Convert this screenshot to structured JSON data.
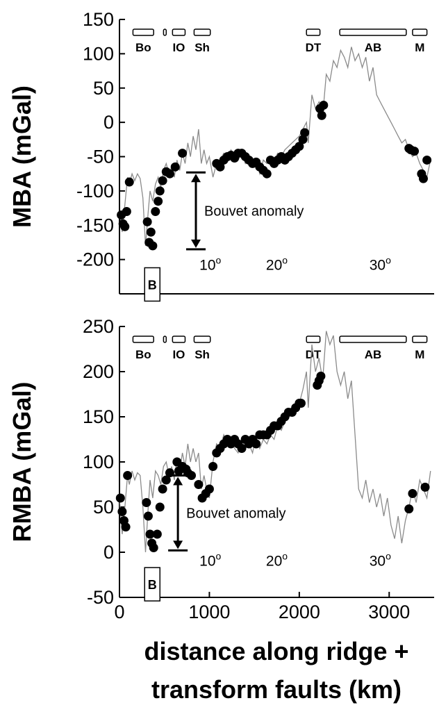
{
  "xlabel_line1": "distance along ridge +",
  "xlabel_line2": "transform faults (km)",
  "chart_data": [
    {
      "type": "line",
      "ylabel": "MBA (mGal)",
      "xlim": [
        0,
        3500
      ],
      "ylim": [
        -250,
        150
      ],
      "x_ticks": [],
      "y_ticks": [
        150,
        100,
        50,
        0,
        -50,
        -100,
        -150,
        -200
      ],
      "segments": [
        {
          "label": "Bo",
          "x_start": 150,
          "x_end": 380
        },
        {
          "label": "",
          "x_start": 490,
          "x_end": 520
        },
        {
          "label": "IO",
          "x_start": 590,
          "x_end": 730
        },
        {
          "label": "Sh",
          "x_start": 830,
          "x_end": 1010
        },
        {
          "label": "DT",
          "x_start": 2080,
          "x_end": 2230
        },
        {
          "label": "AB",
          "x_start": 2450,
          "x_end": 3190
        },
        {
          "label": "M",
          "x_start": 3260,
          "x_end": 3420
        }
      ],
      "latitude_marks": [
        {
          "label": "10°",
          "x": 1010
        },
        {
          "label": "20°",
          "x": 1750
        },
        {
          "label": "30°",
          "x": 2900
        }
      ],
      "box_label": {
        "label": "B",
        "x_start": 280,
        "x_end": 450
      },
      "anomaly": {
        "label": "Bouvet anomaly",
        "x": 850,
        "y_top": -73,
        "y_bottom": -185
      },
      "series": [
        {
          "line_x": [
            0,
            30,
            60,
            90,
            110,
            140,
            170,
            200,
            230,
            260,
            290,
            320,
            340,
            370,
            400,
            430,
            460,
            490,
            520,
            550,
            580,
            610,
            640,
            670,
            700,
            730,
            760,
            790,
            820,
            850,
            880,
            910,
            940,
            970,
            1000,
            1040,
            1080,
            1120,
            1160,
            1200,
            1240,
            1280,
            1320,
            1360,
            1400,
            1440,
            1480,
            1520,
            1560,
            1600,
            1640,
            1680,
            1720,
            1760,
            1800,
            1840,
            1880,
            1920,
            1960,
            2000,
            2040,
            2080,
            2100,
            2140,
            2180,
            2220,
            2260,
            2300,
            2340,
            2380,
            2420,
            2460,
            2500,
            2540,
            2580,
            2620,
            2660,
            2700,
            2740,
            2780,
            2820,
            2860,
            2900,
            2940,
            2980,
            3020,
            3060,
            3100,
            3140,
            3180,
            3220,
            3260,
            3300,
            3340,
            3380,
            3420,
            3460
          ],
          "line_y": [
            -130,
            -160,
            -120,
            -80,
            -90,
            -75,
            -85,
            -75,
            -82,
            -110,
            -180,
            -130,
            -100,
            -115,
            -90,
            -80,
            -95,
            -70,
            -60,
            -75,
            -65,
            -80,
            -55,
            -70,
            -45,
            -60,
            -30,
            -50,
            -20,
            -40,
            -10,
            -60,
            -40,
            -60,
            -50,
            -80,
            -60,
            -55,
            -45,
            -50,
            -40,
            -48,
            -55,
            -45,
            -60,
            -50,
            -65,
            -55,
            -75,
            -55,
            -60,
            -50,
            -55,
            -45,
            -50,
            -40,
            -35,
            -30,
            -25,
            -20,
            -10,
            0,
            -30,
            40,
            20,
            30,
            10,
            70,
            60,
            90,
            80,
            105,
            95,
            80,
            110,
            90,
            100,
            80,
            95,
            60,
            80,
            40,
            30,
            20,
            10,
            0,
            -10,
            -20,
            -30,
            -25,
            -40,
            -50,
            -45,
            -60,
            -70,
            -80,
            -55
          ],
          "dots_x": [
            20,
            40,
            60,
            80,
            110,
            310,
            330,
            350,
            370,
            400,
            430,
            450,
            480,
            520,
            560,
            620,
            700,
            1080,
            1120,
            1160,
            1200,
            1240,
            1280,
            1320,
            1360,
            1400,
            1440,
            1480,
            1520,
            1560,
            1600,
            1640,
            1680,
            1720,
            1760,
            1800,
            1840,
            1880,
            1920,
            1960,
            2000,
            2040,
            2060,
            2230,
            2250,
            2270,
            3220,
            3240,
            3280,
            3360,
            3380,
            3420
          ],
          "dots_y": [
            -135,
            -148,
            -152,
            -130,
            -87,
            -145,
            -175,
            -160,
            -180,
            -130,
            -115,
            -100,
            -85,
            -72,
            -75,
            -65,
            -45,
            -60,
            -65,
            -55,
            -50,
            -48,
            -52,
            -45,
            -45,
            -50,
            -55,
            -60,
            -58,
            -65,
            -70,
            -75,
            -55,
            -60,
            -55,
            -50,
            -55,
            -50,
            -45,
            -40,
            -35,
            -25,
            -15,
            20,
            10,
            25,
            -38,
            -40,
            -42,
            -75,
            -82,
            -55
          ]
        }
      ]
    },
    {
      "type": "line",
      "ylabel": "RMBA (mGal)",
      "xlim": [
        0,
        3500
      ],
      "ylim": [
        -50,
        250
      ],
      "x_ticks": [
        0,
        1000,
        2000,
        3000
      ],
      "y_ticks": [
        250,
        200,
        150,
        100,
        50,
        0,
        -50
      ],
      "segments": [
        {
          "label": "Bo",
          "x_start": 150,
          "x_end": 380
        },
        {
          "label": "",
          "x_start": 490,
          "x_end": 520
        },
        {
          "label": "IO",
          "x_start": 590,
          "x_end": 730
        },
        {
          "label": "Sh",
          "x_start": 830,
          "x_end": 1010
        },
        {
          "label": "DT",
          "x_start": 2080,
          "x_end": 2230
        },
        {
          "label": "AB",
          "x_start": 2450,
          "x_end": 3190
        },
        {
          "label": "M",
          "x_start": 3260,
          "x_end": 3420
        }
      ],
      "latitude_marks": [
        {
          "label": "10°",
          "x": 1010
        },
        {
          "label": "20°",
          "x": 1750
        },
        {
          "label": "30°",
          "x": 2900
        }
      ],
      "box_label": {
        "label": "B",
        "x_start": 280,
        "x_end": 450
      },
      "anomaly": {
        "label": "Bouvet anomaly",
        "x": 650,
        "y_top": 85,
        "y_bottom": 2
      },
      "series": [
        {
          "line_x": [
            0,
            30,
            60,
            90,
            110,
            140,
            170,
            200,
            230,
            260,
            290,
            320,
            340,
            370,
            400,
            430,
            460,
            490,
            520,
            550,
            580,
            610,
            640,
            670,
            700,
            730,
            760,
            790,
            820,
            850,
            880,
            910,
            940,
            970,
            1000,
            1040,
            1080,
            1120,
            1160,
            1200,
            1240,
            1280,
            1320,
            1360,
            1400,
            1440,
            1480,
            1520,
            1560,
            1600,
            1640,
            1680,
            1720,
            1760,
            1800,
            1840,
            1880,
            1920,
            1960,
            2000,
            2040,
            2080,
            2100,
            2140,
            2180,
            2220,
            2260,
            2300,
            2340,
            2380,
            2420,
            2460,
            2500,
            2540,
            2580,
            2620,
            2660,
            2700,
            2740,
            2780,
            2820,
            2860,
            2900,
            2940,
            2980,
            3020,
            3060,
            3100,
            3140,
            3180,
            3220,
            3260,
            3300,
            3340,
            3380,
            3420,
            3460
          ],
          "line_y": [
            60,
            20,
            50,
            85,
            75,
            90,
            80,
            88,
            85,
            50,
            0,
            50,
            80,
            60,
            90,
            85,
            75,
            95,
            100,
            85,
            95,
            80,
            105,
            90,
            110,
            95,
            120,
            100,
            115,
            100,
            110,
            70,
            85,
            70,
            60,
            100,
            120,
            115,
            130,
            120,
            125,
            115,
            110,
            125,
            115,
            120,
            110,
            130,
            115,
            125,
            120,
            130,
            125,
            140,
            135,
            145,
            150,
            155,
            160,
            165,
            180,
            200,
            160,
            230,
            200,
            215,
            190,
            245,
            230,
            240,
            200,
            185,
            200,
            170,
            190,
            130,
            70,
            60,
            80,
            55,
            70,
            50,
            65,
            40,
            60,
            30,
            15,
            40,
            10,
            35,
            50,
            70,
            55,
            80,
            70,
            60,
            90
          ],
          "dots_x": [
            10,
            30,
            50,
            70,
            90,
            300,
            320,
            340,
            360,
            380,
            420,
            450,
            480,
            520,
            560,
            640,
            660,
            700,
            740,
            760,
            800,
            880,
            920,
            960,
            1000,
            1040,
            1080,
            1120,
            1160,
            1200,
            1240,
            1280,
            1320,
            1360,
            1400,
            1440,
            1480,
            1520,
            1560,
            1600,
            1640,
            1680,
            1720,
            1760,
            1800,
            1840,
            1880,
            1920,
            1960,
            2000,
            2020,
            2200,
            2220,
            2240,
            3220,
            3260,
            3400
          ],
          "dots_y": [
            60,
            45,
            35,
            28,
            85,
            55,
            40,
            20,
            10,
            5,
            20,
            50,
            70,
            80,
            88,
            100,
            90,
            95,
            92,
            88,
            85,
            75,
            60,
            65,
            70,
            95,
            110,
            115,
            120,
            125,
            120,
            125,
            120,
            115,
            125,
            120,
            125,
            120,
            130,
            130,
            130,
            135,
            140,
            140,
            145,
            150,
            155,
            155,
            160,
            165,
            165,
            185,
            190,
            195,
            48,
            65,
            72
          ]
        }
      ]
    }
  ]
}
